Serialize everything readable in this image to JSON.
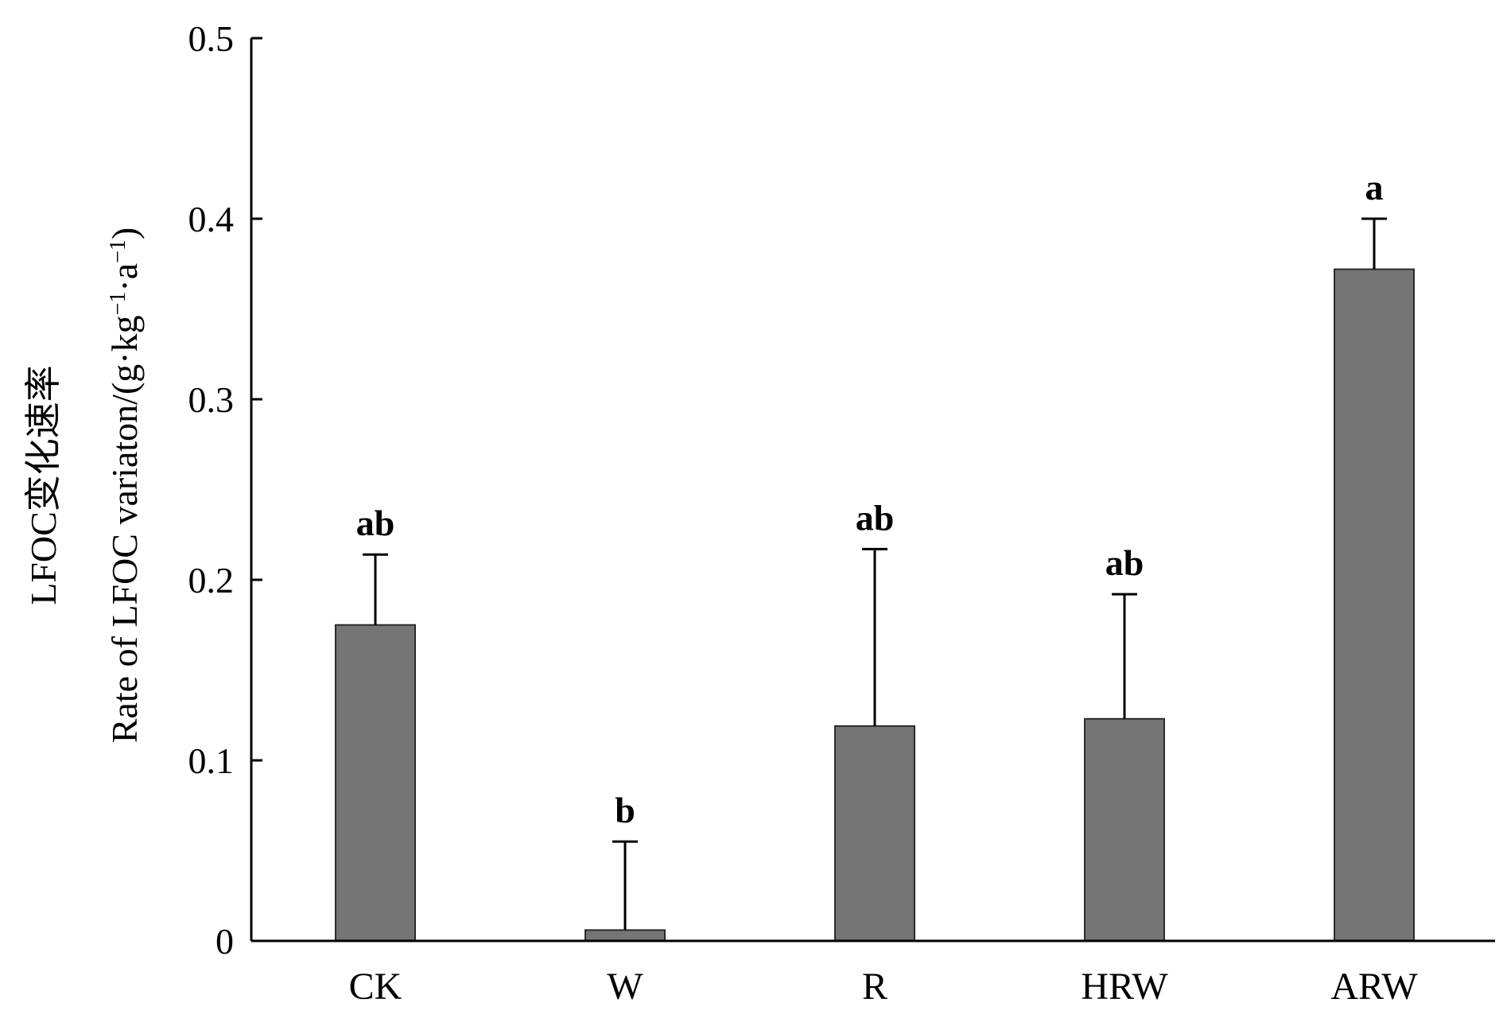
{
  "chart_data": {
    "type": "bar",
    "ylabel_line1": "LFOC变化速率",
    "ylabel_line2_main": "Rate of LFOC variaton/(g·kg",
    "ylabel_line2_exp1": "−1",
    "ylabel_line2_mid": "·a",
    "ylabel_line2_exp2": "−1",
    "ylabel_line2_end": ")",
    "ylim": [
      0,
      0.5
    ],
    "yticks": [
      0,
      0.1,
      0.2,
      0.3,
      0.4,
      0.5
    ],
    "ytick_labels": [
      "0",
      "0.1",
      "0.2",
      "0.3",
      "0.4",
      "0.5"
    ],
    "categories": [
      "CK",
      "W",
      "R",
      "HRW",
      "ARW"
    ],
    "values": [
      0.175,
      0.006,
      0.119,
      0.123,
      0.372
    ],
    "error_upper": [
      0.214,
      0.055,
      0.217,
      0.192,
      0.4
    ],
    "significance": [
      "ab",
      "b",
      "ab",
      "ab",
      "a"
    ],
    "bar_color": "#757575",
    "grid": false,
    "legend": "none"
  }
}
